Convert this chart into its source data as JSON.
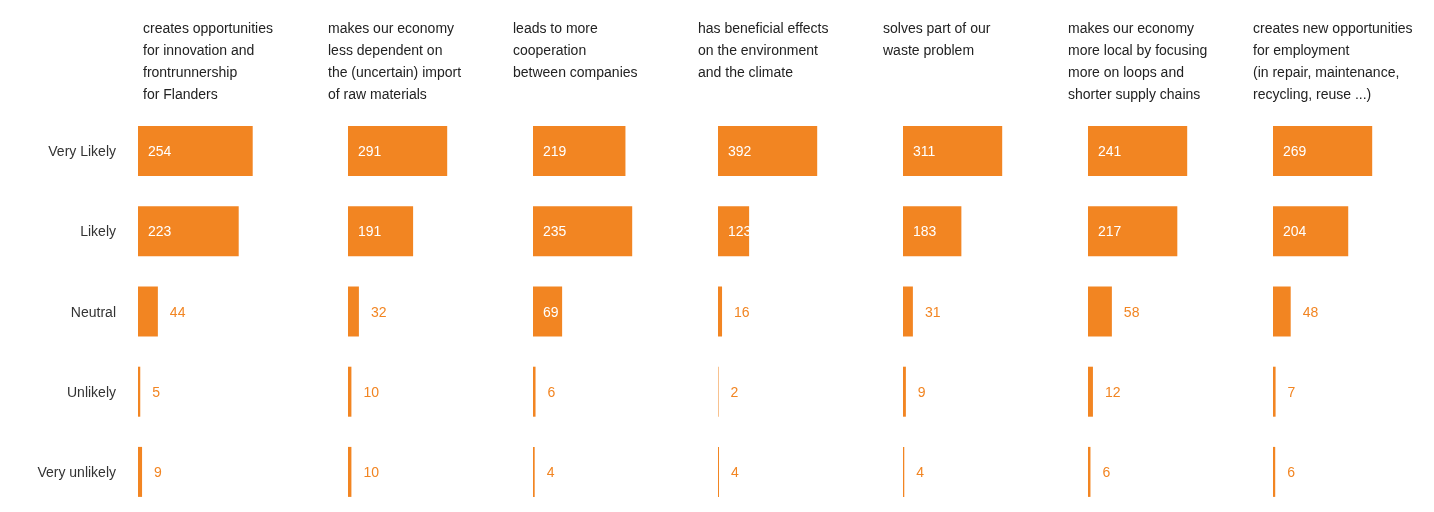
{
  "chart_data": [
    {
      "type": "bar",
      "orientation": "horizontal",
      "title": "creates opportunities\nfor innovation and\nfrontrunnership\nfor Flanders",
      "categories": [
        "Very Likely",
        "Likely",
        "Neutral",
        "Unlikely",
        "Very unlikely"
      ],
      "values": [
        254,
        223,
        44,
        5,
        9
      ],
      "color": "#f28522",
      "data_labels": true,
      "tick_labels": "y"
    },
    {
      "type": "bar",
      "orientation": "horizontal",
      "title": "makes our economy\nless dependent on\nthe (uncertain) import\nof raw materials",
      "categories": [
        null,
        null,
        null,
        null,
        null
      ],
      "values": [
        291,
        191,
        32,
        10,
        10
      ],
      "color": "#f28522",
      "data_labels": true,
      "tick_labels": "y"
    },
    {
      "type": "bar",
      "orientation": "horizontal",
      "title": "leads to more\ncooperation\nbetween companies",
      "categories": [
        null,
        null,
        null,
        null,
        null
      ],
      "values": [
        219,
        235,
        69,
        6,
        4
      ],
      "color": "#f28522",
      "data_labels": true,
      "tick_labels": "y"
    },
    {
      "type": "bar",
      "orientation": "horizontal",
      "title": "has beneficial effects\non the environment\nand the climate",
      "categories": [
        null,
        null,
        null,
        null,
        null
      ],
      "values": [
        392,
        123,
        16,
        2,
        4
      ],
      "color": "#f28522",
      "data_labels": true,
      "tick_labels": "y"
    },
    {
      "type": "bar",
      "orientation": "horizontal",
      "title": "solves part of our\nwaste problem",
      "categories": [
        null,
        null,
        null,
        null,
        null
      ],
      "values": [
        311,
        183,
        31,
        9,
        4
      ],
      "color": "#f28522",
      "data_labels": true,
      "tick_labels": "y"
    },
    {
      "type": "bar",
      "orientation": "horizontal",
      "title": "makes our economy\nmore local by focusing\nmore on loops and\nshorter supply chains",
      "categories": [
        null,
        null,
        null,
        null,
        null
      ],
      "values": [
        241,
        217,
        58,
        12,
        6
      ],
      "color": "#f28522",
      "data_labels": true,
      "tick_labels": "y"
    },
    {
      "type": "bar",
      "orientation": "horizontal",
      "title": "creates new opportunities\nfor employment\n(in repair, maintenance,\nrecycling, reuse ...)",
      "categories": [
        null,
        null,
        null,
        null,
        null
      ],
      "values": [
        269,
        204,
        48,
        7,
        6
      ],
      "color": "#f28522",
      "data_labels": true,
      "tick_labels": "y"
    }
  ]
}
